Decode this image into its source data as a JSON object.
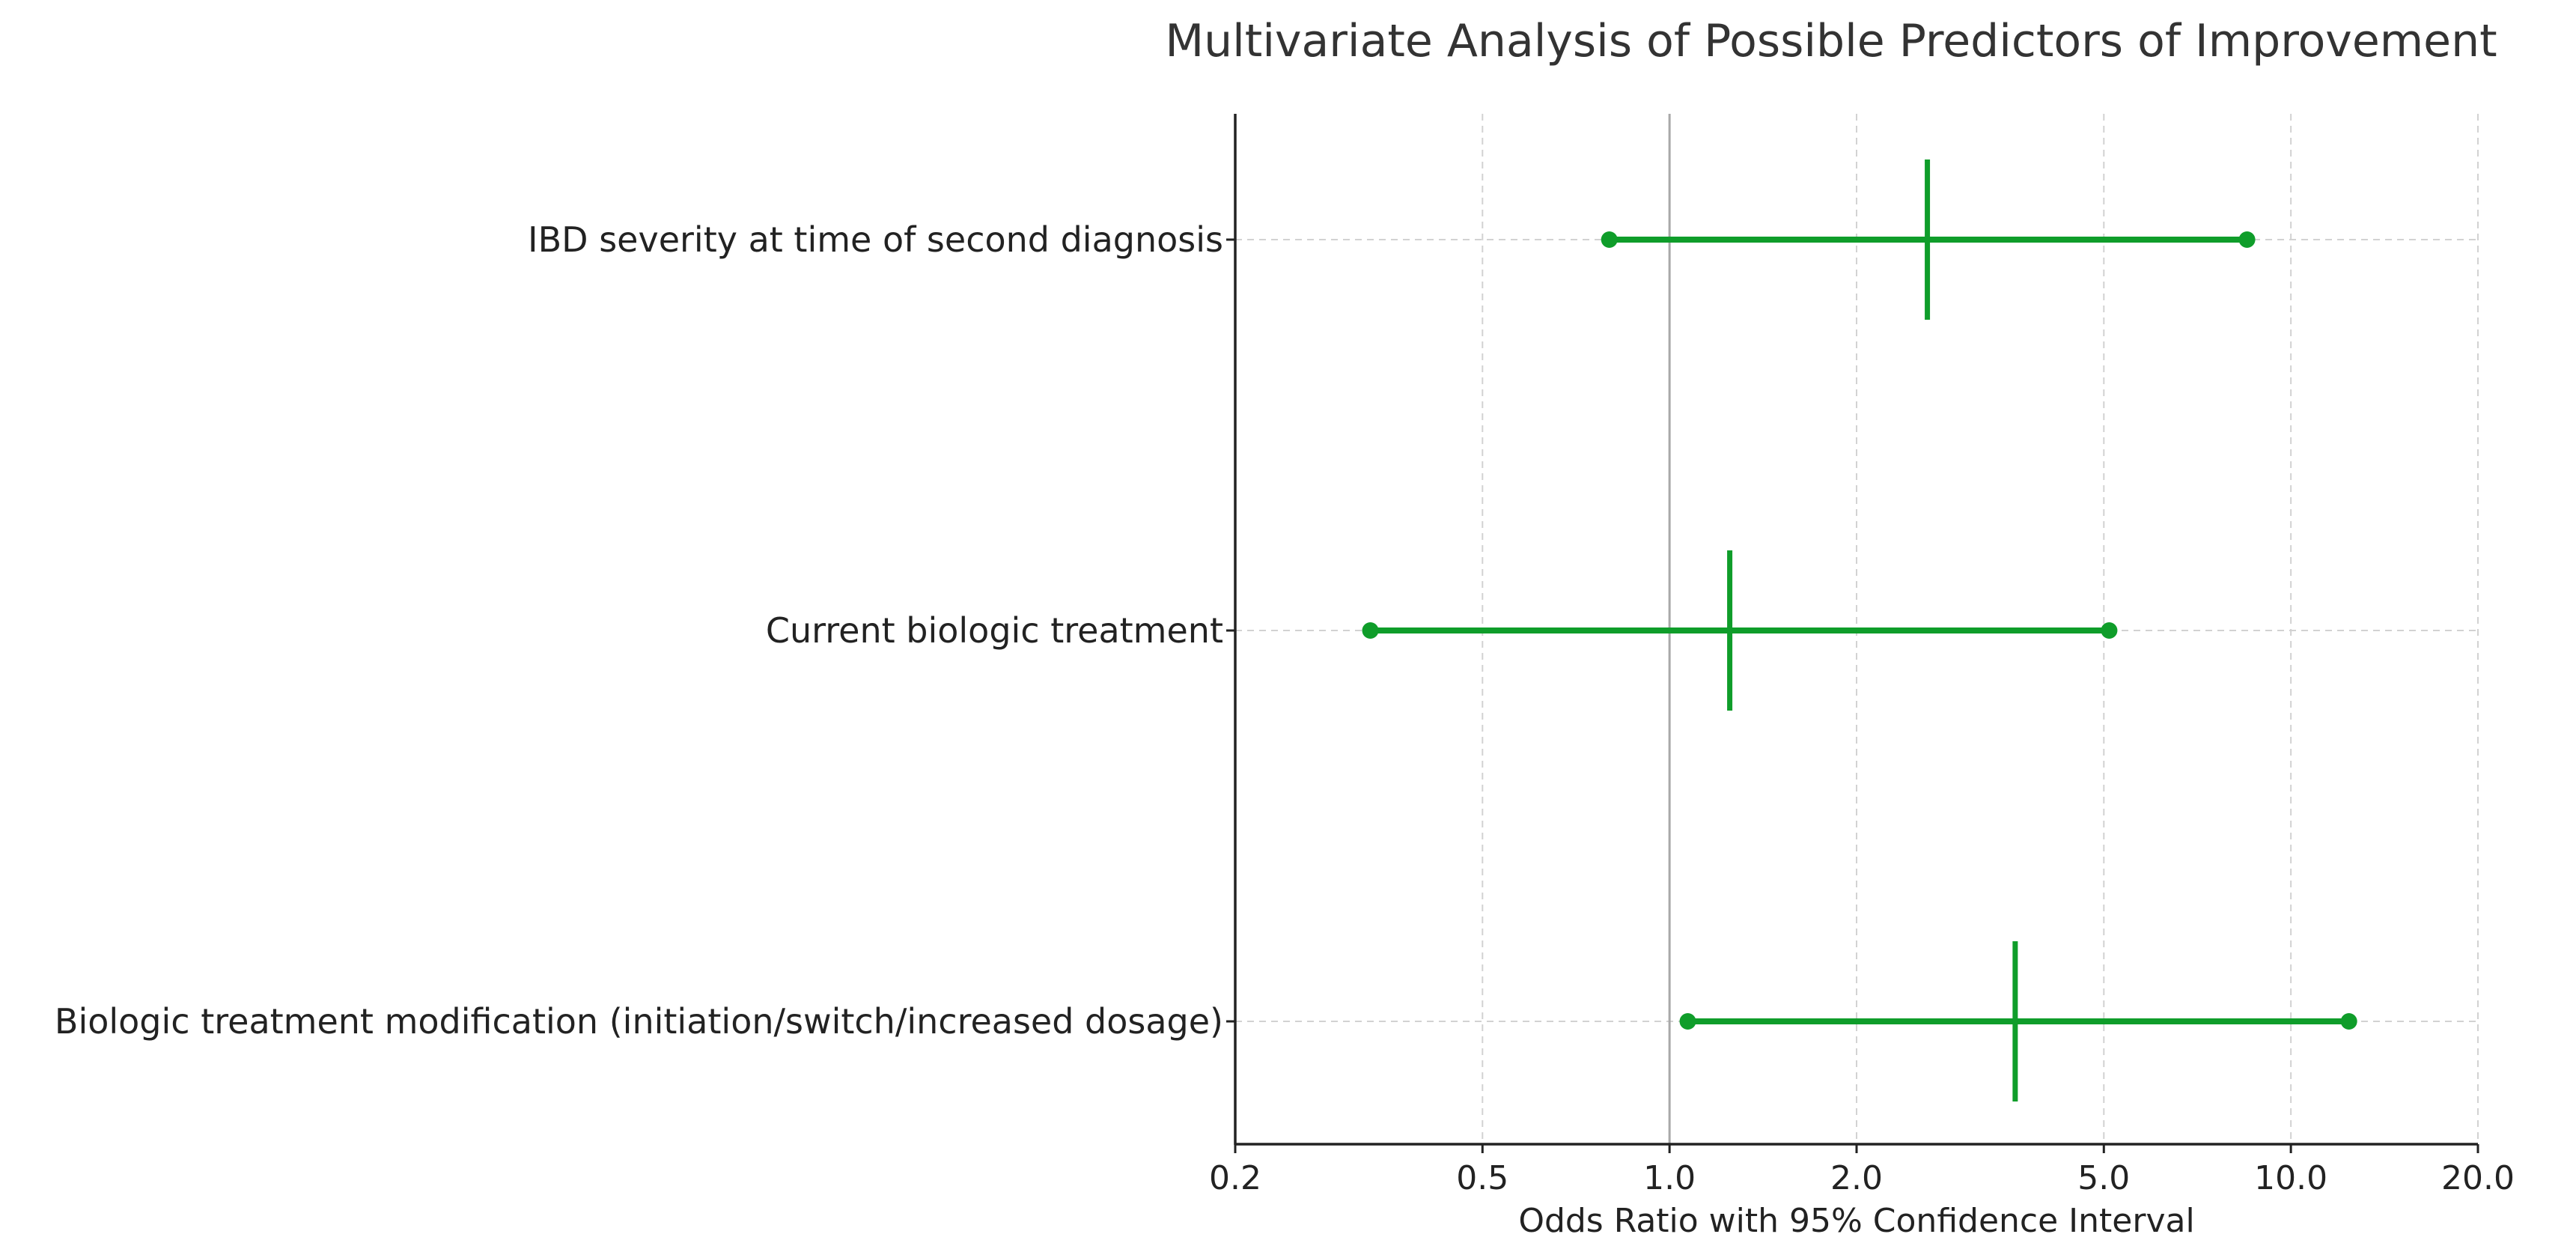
{
  "chart_data": {
    "type": "forest",
    "title": "Multivariate Analysis of Possible Predictors of Improvement",
    "xlabel": "Odds Ratio with 95% Confidence Interval",
    "ylabel": "",
    "x_scale": "log",
    "xlim": [
      0.2,
      20.0
    ],
    "x_ticks": [
      0.2,
      0.5,
      1.0,
      2.0,
      5.0,
      10.0,
      20.0
    ],
    "x_tick_labels": [
      "0.2",
      "0.5",
      "1.0",
      "2.0",
      "5.0",
      "10.0",
      "20.0"
    ],
    "reference_line": 1.0,
    "grid": true,
    "series_color": "#0f9d2a",
    "categories": [
      "IBD severity at time of second diagnosis",
      "Current biologic treatment",
      "Biologic treatment modification (initiation/switch/increased dosage)"
    ],
    "points": [
      {
        "label": "IBD severity at time of second diagnosis",
        "estimate": 2.6,
        "ci_low": 0.8,
        "ci_high": 8.5
      },
      {
        "label": "Current biologic treatment",
        "estimate": 1.25,
        "ci_low": 0.33,
        "ci_high": 5.1
      },
      {
        "label": "Biologic treatment modification (initiation/switch/increased dosage)",
        "estimate": 3.6,
        "ci_low": 1.07,
        "ci_high": 12.4
      }
    ]
  }
}
